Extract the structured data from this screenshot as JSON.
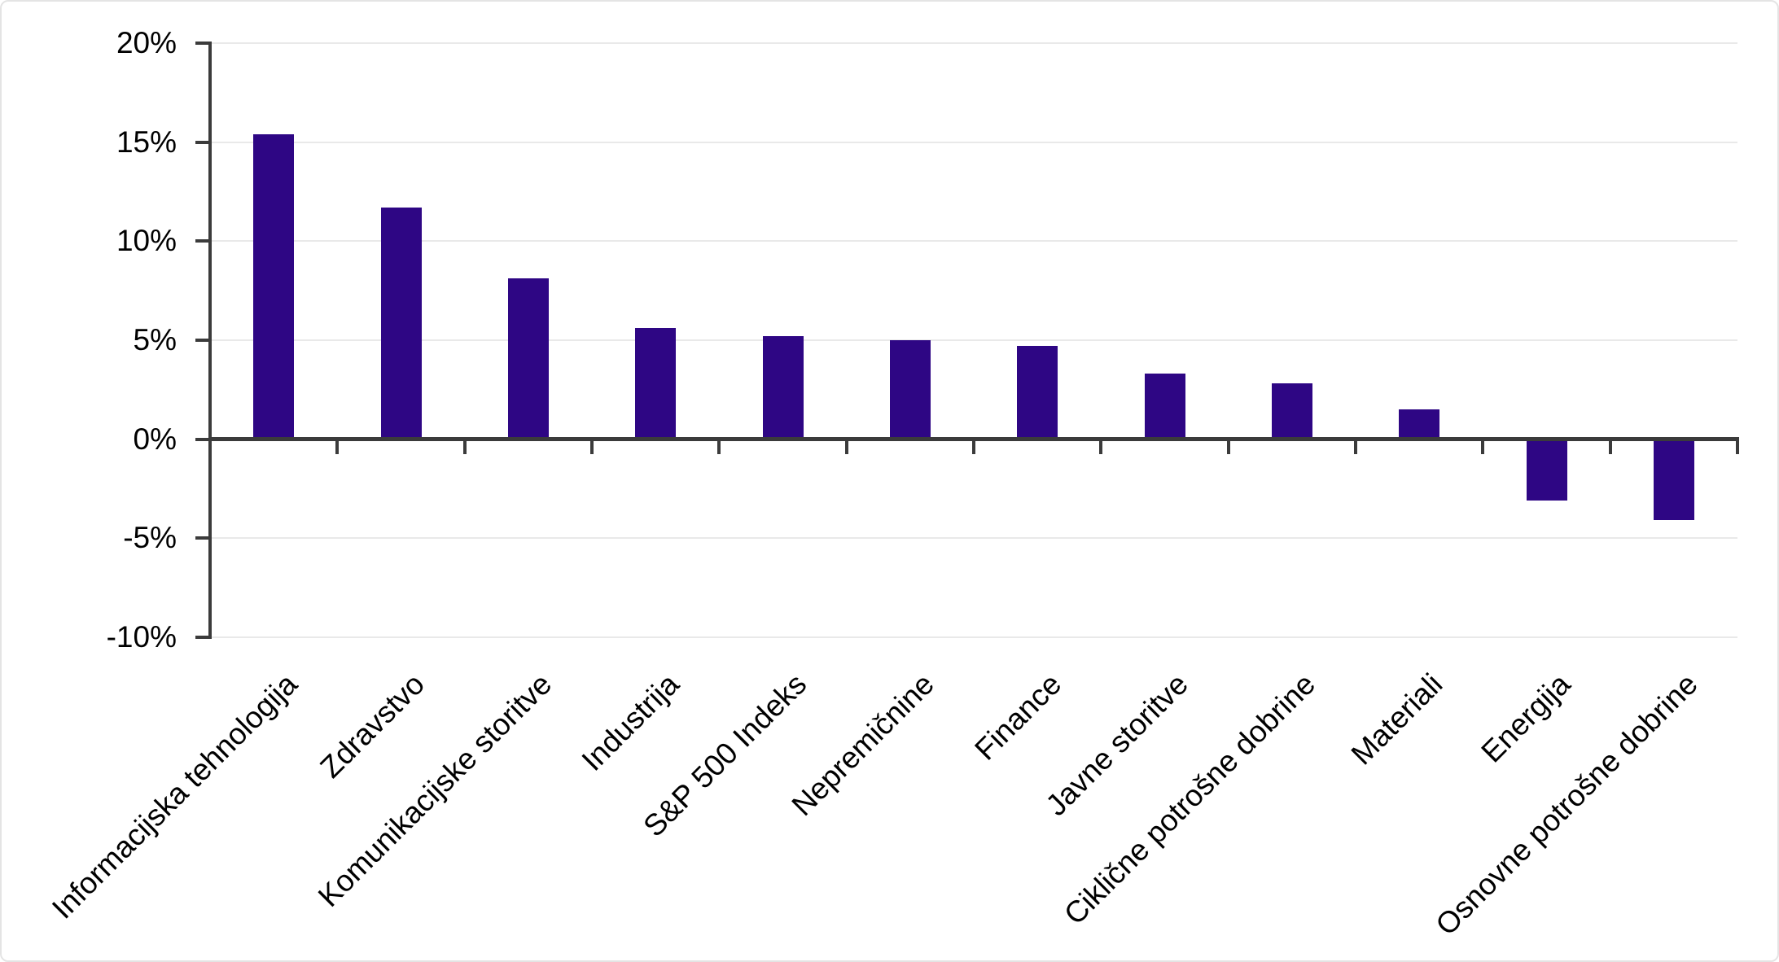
{
  "chart_data": {
    "type": "bar",
    "title": "",
    "xlabel": "",
    "ylabel": "",
    "categories": [
      "Informacijska tehnologija",
      "Zdravstvo",
      "Komunikacijske storitve",
      "Industrija",
      "S&P 500 Indeks",
      "Nepremičnine",
      "Finance",
      "Javne storitve",
      "Ciklične potrošne dobrine",
      "Materiali",
      "Energija",
      "Osnovne potrošne dobrine"
    ],
    "values": [
      15.4,
      11.7,
      8.1,
      5.6,
      5.2,
      5.0,
      4.7,
      3.3,
      2.8,
      1.5,
      -3.1,
      -4.1
    ],
    "ylim": [
      -10,
      20
    ],
    "ytick_step": 5,
    "ytick_labels": [
      "20%",
      "15%",
      "10%",
      "5%",
      "0%",
      "-5%",
      "-10%"
    ],
    "grid": true,
    "legend": false,
    "colors": {
      "bar": "#2e0684",
      "gridline": "#e9e9e9",
      "axis": "#3b3b3b",
      "text": "#000000",
      "background": "#ffffff",
      "border": "#e4e4e4"
    }
  }
}
